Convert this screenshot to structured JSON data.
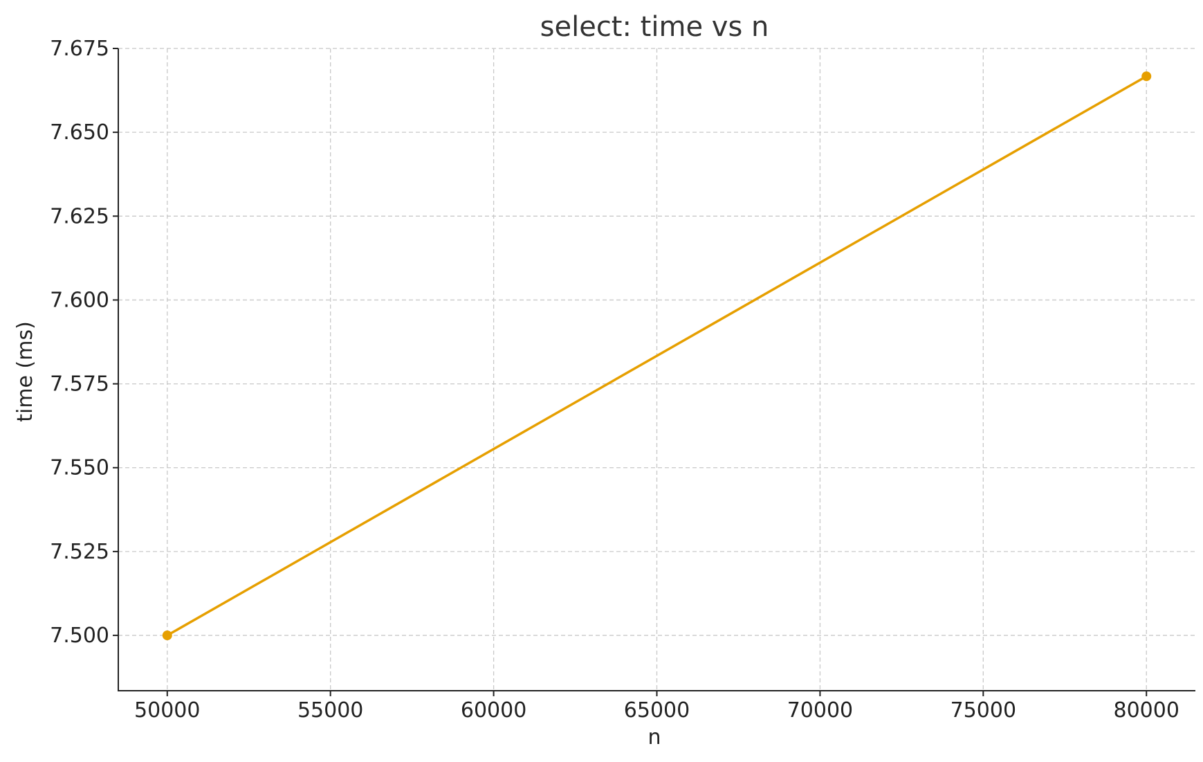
{
  "chart_data": {
    "type": "line",
    "title": "select: time vs n",
    "xlabel": "n",
    "ylabel": "time (ms)",
    "xlim": [
      48500,
      81500
    ],
    "ylim": [
      7.4835,
      7.675
    ],
    "x_ticks": [
      50000,
      55000,
      60000,
      65000,
      70000,
      75000,
      80000
    ],
    "x_tick_labels": [
      "50000",
      "55000",
      "60000",
      "65000",
      "70000",
      "75000",
      "80000"
    ],
    "y_ticks": [
      7.5,
      7.525,
      7.55,
      7.575,
      7.6,
      7.625,
      7.65,
      7.675
    ],
    "y_tick_labels": [
      "7.500",
      "7.525",
      "7.550",
      "7.575",
      "7.600",
      "7.625",
      "7.650",
      "7.675"
    ],
    "grid": true,
    "series": [
      {
        "x": [
          50000,
          80000
        ],
        "y": [
          7.5,
          7.6667
        ],
        "color": "#e69f00",
        "marker": "circle"
      }
    ]
  }
}
